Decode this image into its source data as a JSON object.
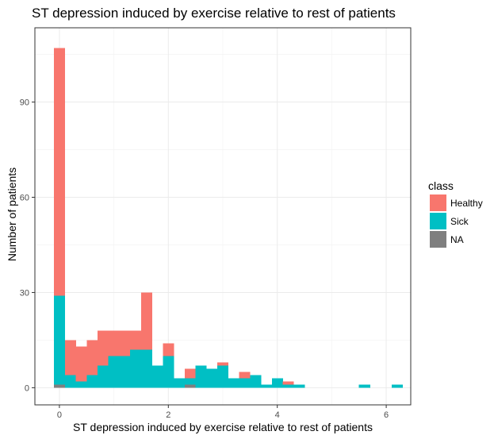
{
  "chart_data": {
    "type": "bar",
    "title": "ST depression induced by exercise relative to rest of patients",
    "xlabel": "ST depression induced by exercise relative to rest of patients",
    "ylabel": "Number of patients",
    "xlim": [
      -0.45,
      6.45
    ],
    "ylim": [
      -5.4,
      113.4
    ],
    "x_ticks": [
      0,
      2,
      4,
      6
    ],
    "x_tick_labels": [
      "0",
      "2",
      "4",
      "6"
    ],
    "y_ticks": [
      0,
      30,
      60,
      90
    ],
    "y_tick_labels": [
      "0",
      "30",
      "60",
      "90"
    ],
    "grid": true,
    "legend_position": "right",
    "legend_title": "class",
    "bin_width": 0.2,
    "stacked": true,
    "bin_centers": [
      0,
      0.2,
      0.4,
      0.6,
      0.8,
      1.0,
      1.2,
      1.4,
      1.6,
      1.8,
      2.0,
      2.2,
      2.4,
      2.6,
      2.8,
      3.0,
      3.2,
      3.4,
      3.6,
      3.8,
      4.0,
      4.2,
      4.4,
      5.6,
      6.2
    ],
    "series": [
      {
        "name": "Healthy",
        "color": "#F8766D",
        "values": [
          78,
          11,
          11,
          11,
          11,
          8,
          8,
          6,
          18,
          0,
          4,
          0,
          3,
          0,
          0,
          1,
          0,
          2,
          0,
          0,
          0,
          1,
          0,
          0,
          0
        ]
      },
      {
        "name": "Sick",
        "color": "#00BFC4",
        "values": [
          28,
          4,
          2,
          4,
          7,
          10,
          10,
          12,
          12,
          7,
          10,
          3,
          2,
          7,
          6,
          7,
          3,
          3,
          4,
          1,
          3,
          1,
          1,
          1,
          1
        ]
      },
      {
        "name": "NA",
        "color": "#7F7F7F",
        "values": [
          1,
          0,
          0,
          0,
          0,
          0,
          0,
          0,
          0,
          0,
          0,
          0,
          1,
          0,
          0,
          0,
          0,
          0,
          0,
          0,
          0,
          0,
          0,
          0,
          0
        ]
      }
    ]
  }
}
